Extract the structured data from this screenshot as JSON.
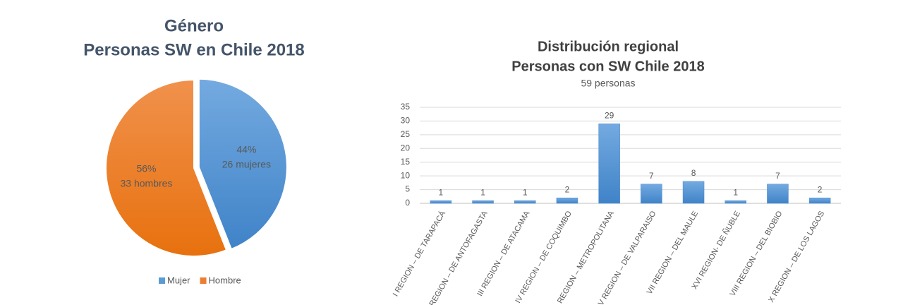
{
  "chart_data": [
    {
      "type": "pie",
      "title": [
        "Género",
        "Personas SW en Chile 2018"
      ],
      "categories": [
        "Mujer",
        "Hombre"
      ],
      "values": [
        44,
        56
      ],
      "value_labels": [
        "44%",
        "56%"
      ],
      "annotations": [
        "26 mujeres",
        "33 hombres"
      ],
      "colors": [
        "#5b9bd5",
        "#ed7d31"
      ],
      "legend": "bottom"
    },
    {
      "type": "bar",
      "title": [
        "Distribución regional",
        "Personas con SW Chile 2018"
      ],
      "subtitle": "59 personas",
      "categories": [
        "I REGION – DE TARAPACÁ",
        "II REGION – DE ANTOFAGASTA",
        "III REGION – DE ATACAMA",
        "IV REGION – DE COQUIMBO",
        "REGION – METROPOLITANA",
        "V REGION – DE VALPARAISO",
        "VII REGION – DEL MAULE",
        "XVI REGION- DE ÑUBLE",
        "VIII REGION – DEL BIOBIO",
        "X REGION – DE LOS LAGOS"
      ],
      "values": [
        1,
        1,
        1,
        2,
        29,
        7,
        8,
        1,
        7,
        2
      ],
      "color": "#5b9bd5",
      "ylim": [
        0,
        35
      ],
      "yticks": [
        0,
        5,
        10,
        15,
        20,
        25,
        30,
        35
      ],
      "grid": true
    }
  ]
}
